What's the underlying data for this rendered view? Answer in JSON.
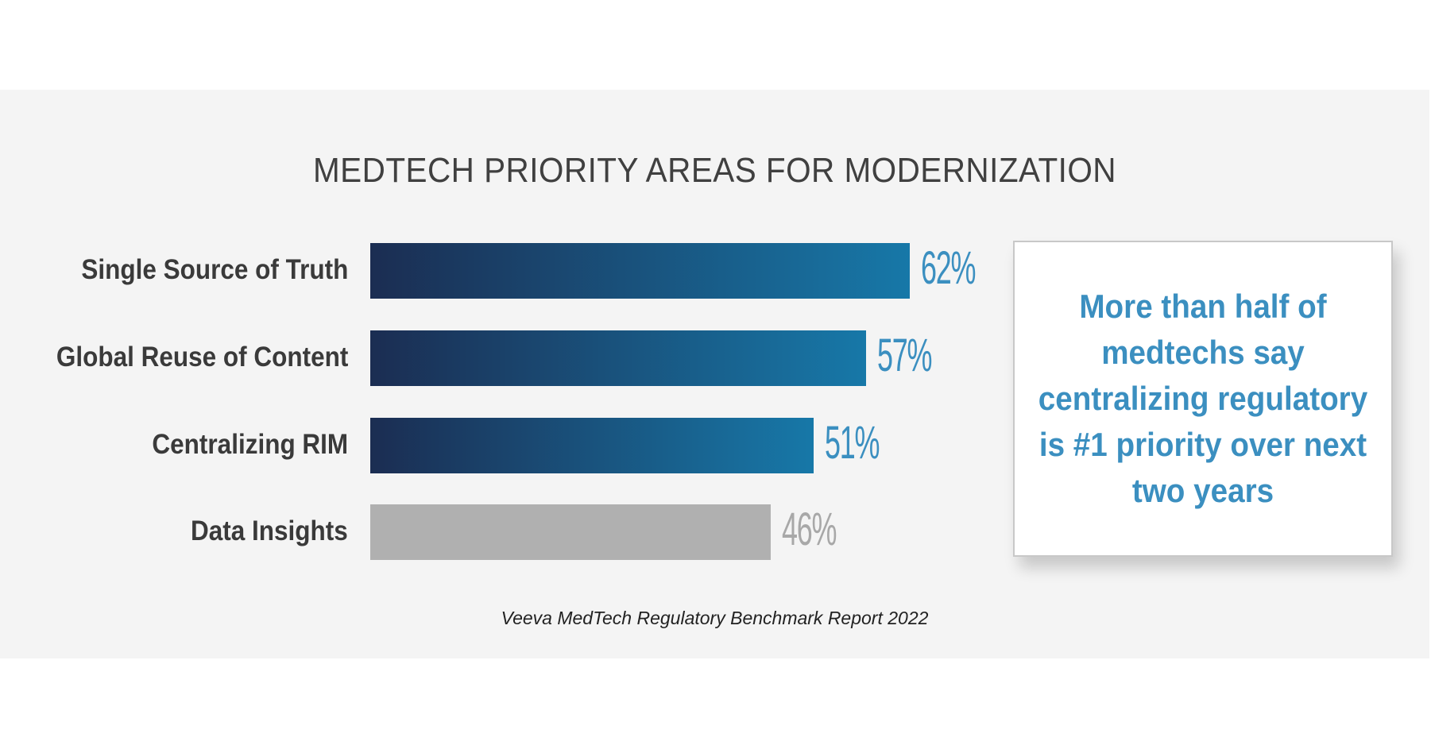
{
  "chart_data": {
    "type": "bar",
    "orientation": "horizontal",
    "title": "MEDTECH PRIORITY AREAS FOR MODERNIZATION",
    "categories": [
      "Single Source of Truth",
      "Global Reuse of Content",
      "Centralizing RIM",
      "Data Insights"
    ],
    "values": [
      62,
      57,
      51,
      46
    ],
    "value_labels": [
      "62%",
      "57%",
      "51%",
      "46%"
    ],
    "xlim": [
      0,
      100
    ],
    "grid": false,
    "colors": {
      "highlight_gradient": [
        "#1b2d52",
        "#1778a8"
      ],
      "muted_bar": "#b0b0b0",
      "highlight_label": "#3b8fc0",
      "muted_label": "#a8a8a8"
    },
    "highlighted": [
      true,
      true,
      true,
      false
    ]
  },
  "callout": "More than half of medtechs say centralizing regulatory is #1 priority over next two years",
  "source": "Veeva MedTech Regulatory Benchmark Report 2022"
}
